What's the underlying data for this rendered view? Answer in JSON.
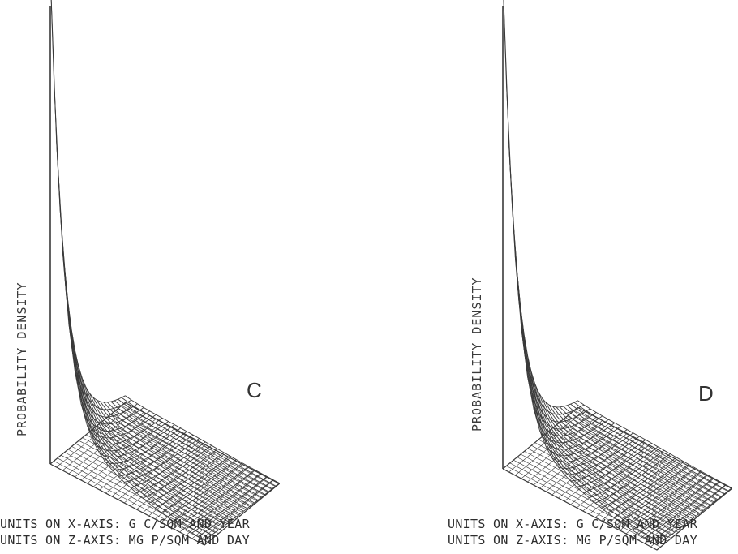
{
  "chart_data": [
    {
      "type": "surface",
      "panel_letter": "C",
      "zlabel": "PROBABILITY DENSITY",
      "units_x": "UNITS ON X-AXIS: G C/SQM AND YEAR",
      "units_z": "UNITS ON Z-AXIS: MG P/SQM AND DAY",
      "grid": true,
      "colors": {
        "line": "#3a3a3a"
      }
    },
    {
      "type": "surface",
      "panel_letter": "D",
      "zlabel": "PROBABILITY DENSITY",
      "units_x": "UNITS ON X-AXIS: G C/SQM AND YEAR",
      "units_z": "UNITS ON Z-AXIS: MG P/SQM AND DAY",
      "grid": true,
      "colors": {
        "line": "#3a3a3a"
      }
    }
  ]
}
